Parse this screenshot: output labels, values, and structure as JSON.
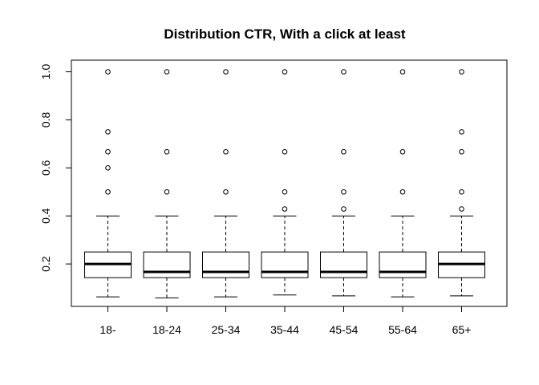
{
  "chart_data": {
    "type": "boxplot",
    "title": "Distribution CTR, With a click at least",
    "xlabel": "",
    "ylabel": "",
    "categories": [
      "18-",
      "18-24",
      "25-34",
      "35-44",
      "45-54",
      "55-64",
      "65+"
    ],
    "ylim": [
      0.04,
      1.04
    ],
    "yticks": [
      0.2,
      0.4,
      0.6,
      0.8,
      1.0
    ],
    "ytick_labels": [
      "0.2",
      "0.4",
      "0.6",
      "0.8",
      "1.0"
    ],
    "grid": false,
    "boxes": [
      {
        "category": "18-",
        "whisker_low": 0.063,
        "q1": 0.143,
        "median": 0.2,
        "q3": 0.25,
        "whisker_high": 0.4,
        "outliers": [
          0.5,
          0.6,
          0.667,
          0.75,
          1.0
        ]
      },
      {
        "category": "18-24",
        "whisker_low": 0.059,
        "q1": 0.143,
        "median": 0.167,
        "q3": 0.25,
        "whisker_high": 0.4,
        "outliers": [
          0.5,
          0.667,
          1.0
        ]
      },
      {
        "category": "25-34",
        "whisker_low": 0.063,
        "q1": 0.143,
        "median": 0.167,
        "q3": 0.25,
        "whisker_high": 0.4,
        "outliers": [
          0.5,
          0.667,
          1.0
        ]
      },
      {
        "category": "35-44",
        "whisker_low": 0.071,
        "q1": 0.143,
        "median": 0.167,
        "q3": 0.25,
        "whisker_high": 0.4,
        "outliers": [
          0.429,
          0.5,
          0.667,
          1.0
        ]
      },
      {
        "category": "45-54",
        "whisker_low": 0.067,
        "q1": 0.143,
        "median": 0.167,
        "q3": 0.25,
        "whisker_high": 0.4,
        "outliers": [
          0.429,
          0.5,
          0.667,
          1.0
        ]
      },
      {
        "category": "55-64",
        "whisker_low": 0.063,
        "q1": 0.143,
        "median": 0.167,
        "q3": 0.25,
        "whisker_high": 0.4,
        "outliers": [
          0.5,
          0.667,
          1.0
        ]
      },
      {
        "category": "65+",
        "whisker_low": 0.067,
        "q1": 0.143,
        "median": 0.2,
        "q3": 0.25,
        "whisker_high": 0.4,
        "outliers": [
          0.429,
          0.5,
          0.667,
          0.75,
          1.0
        ]
      }
    ]
  }
}
